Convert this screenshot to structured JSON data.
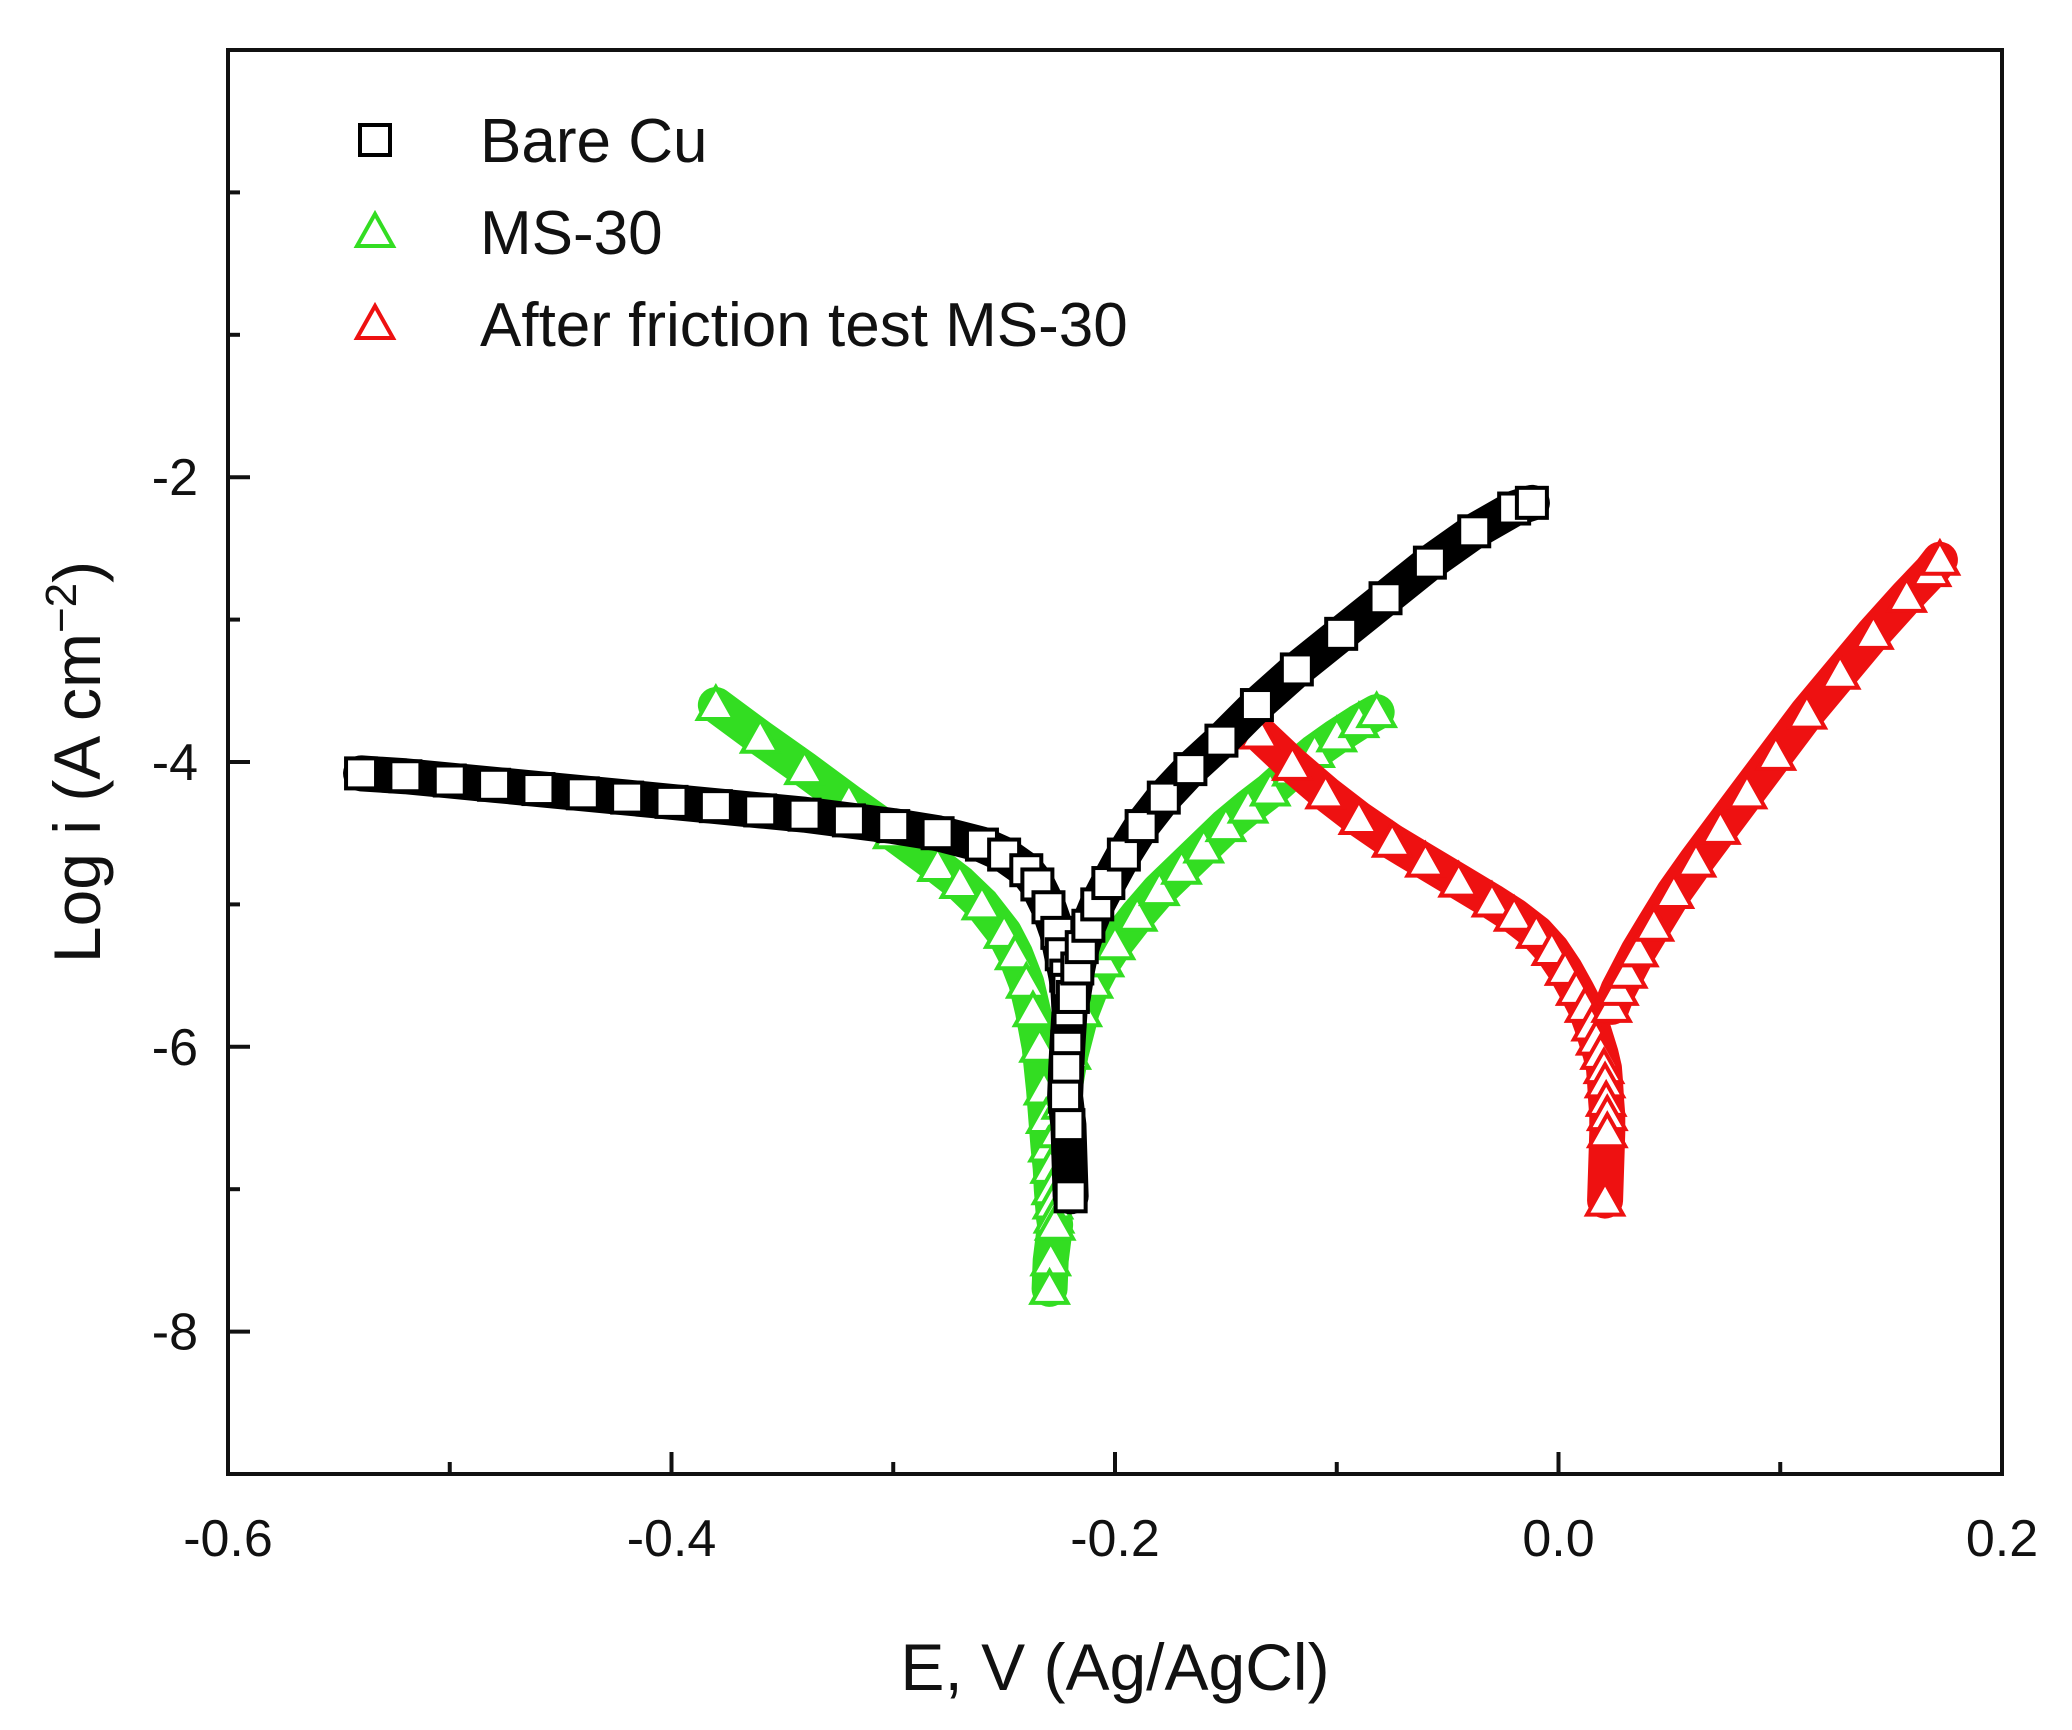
{
  "chart_data": {
    "type": "scatter",
    "title": "",
    "xlabel": "E, V (Ag/AgCl)",
    "ylabel_main": "Log i (A cm",
    "ylabel_sup": "−2",
    "ylabel_close": ")",
    "xlim": [
      -0.6,
      0.2
    ],
    "ylim": [
      -9,
      1
    ],
    "xticks": [
      -0.6,
      -0.4,
      -0.2,
      0.0,
      0.2
    ],
    "xtick_labels": [
      "-0.6",
      "-0.4",
      "-0.2",
      "0.0",
      "0.2"
    ],
    "yticks": [
      -8,
      -6,
      -4,
      -2
    ],
    "ytick_labels": [
      "-8",
      "-6",
      "-4",
      "-2"
    ],
    "legend_position": "top-left",
    "series": [
      {
        "name": "Bare Cu",
        "marker": "square",
        "color": "#000000",
        "x": [
          -0.54,
          -0.52,
          -0.5,
          -0.48,
          -0.46,
          -0.44,
          -0.42,
          -0.4,
          -0.38,
          -0.36,
          -0.34,
          -0.32,
          -0.3,
          -0.28,
          -0.26,
          -0.25,
          -0.24,
          -0.235,
          -0.23,
          -0.226,
          -0.224,
          -0.222,
          -0.221,
          -0.2205,
          -0.2215,
          -0.222,
          -0.2225,
          -0.221,
          -0.22,
          -0.219,
          -0.217,
          -0.215,
          -0.212,
          -0.208,
          -0.203,
          -0.196,
          -0.188,
          -0.178,
          -0.166,
          -0.152,
          -0.136,
          -0.118,
          -0.098,
          -0.078,
          -0.058,
          -0.038,
          -0.02,
          -0.012
        ],
        "y": [
          -4.08,
          -4.1,
          -4.13,
          -4.16,
          -4.19,
          -4.22,
          -4.25,
          -4.28,
          -4.31,
          -4.34,
          -4.37,
          -4.41,
          -4.45,
          -4.5,
          -4.58,
          -4.65,
          -4.76,
          -4.86,
          -5.02,
          -5.2,
          -5.35,
          -5.5,
          -5.6,
          -5.75,
          -6.0,
          -6.15,
          -6.35,
          -6.55,
          -7.05,
          -5.65,
          -5.45,
          -5.3,
          -5.15,
          -5.0,
          -4.85,
          -4.65,
          -4.45,
          -4.25,
          -4.05,
          -3.85,
          -3.6,
          -3.35,
          -3.1,
          -2.85,
          -2.6,
          -2.38,
          -2.22,
          -2.18
        ]
      },
      {
        "name": "MS-30",
        "marker": "triangle",
        "color": "#33dd22",
        "x": [
          -0.38,
          -0.36,
          -0.34,
          -0.32,
          -0.3,
          -0.28,
          -0.27,
          -0.26,
          -0.25,
          -0.245,
          -0.24,
          -0.237,
          -0.234,
          -0.232,
          -0.231,
          -0.23,
          -0.229,
          -0.2285,
          -0.228,
          -0.2275,
          -0.227,
          -0.229,
          -0.2295,
          -0.226,
          -0.224,
          -0.22,
          -0.215,
          -0.21,
          -0.205,
          -0.2,
          -0.19,
          -0.18,
          -0.17,
          -0.16,
          -0.15,
          -0.14,
          -0.13,
          -0.12,
          -0.11,
          -0.1,
          -0.09,
          -0.082
        ],
        "y": [
          -3.6,
          -3.83,
          -4.05,
          -4.28,
          -4.5,
          -4.73,
          -4.85,
          -5.0,
          -5.2,
          -5.35,
          -5.55,
          -5.75,
          -6.0,
          -6.3,
          -6.5,
          -6.7,
          -6.85,
          -7.0,
          -7.1,
          -7.2,
          -7.25,
          -7.5,
          -7.7,
          -6.6,
          -6.4,
          -6.05,
          -5.75,
          -5.55,
          -5.4,
          -5.28,
          -5.08,
          -4.9,
          -4.75,
          -4.6,
          -4.45,
          -4.32,
          -4.2,
          -4.06,
          -3.93,
          -3.82,
          -3.72,
          -3.65
        ]
      },
      {
        "name": "After friction test MS-30",
        "marker": "triangle",
        "color": "#ee1111",
        "x": [
          -0.135,
          -0.12,
          -0.105,
          -0.09,
          -0.075,
          -0.06,
          -0.045,
          -0.03,
          -0.02,
          -0.01,
          -0.003,
          0.003,
          0.008,
          0.012,
          0.015,
          0.017,
          0.019,
          0.0205,
          0.021,
          0.0215,
          0.022,
          0.022,
          0.021,
          0.024,
          0.027,
          0.031,
          0.036,
          0.043,
          0.052,
          0.062,
          0.073,
          0.085,
          0.098,
          0.112,
          0.127,
          0.142,
          0.157,
          0.168,
          0.172
        ],
        "y": [
          -3.8,
          -4.02,
          -4.22,
          -4.4,
          -4.56,
          -4.7,
          -4.84,
          -4.98,
          -5.08,
          -5.2,
          -5.32,
          -5.46,
          -5.6,
          -5.72,
          -5.85,
          -5.95,
          -6.05,
          -6.15,
          -6.25,
          -6.38,
          -6.48,
          -6.6,
          -7.08,
          -5.72,
          -5.6,
          -5.48,
          -5.33,
          -5.15,
          -4.92,
          -4.7,
          -4.47,
          -4.22,
          -3.95,
          -3.66,
          -3.38,
          -3.1,
          -2.84,
          -2.66,
          -2.58
        ]
      }
    ]
  }
}
